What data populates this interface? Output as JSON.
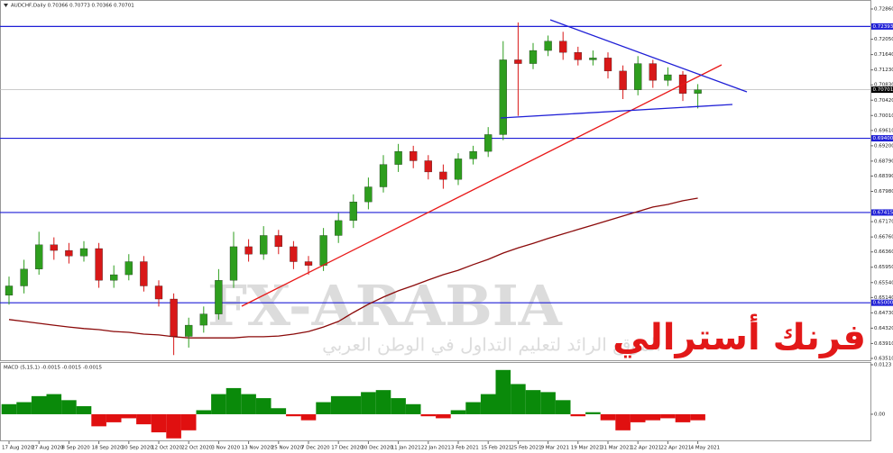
{
  "chart_data": [
    {
      "type": "candlestick",
      "title": "AUDCHF,Daily  0.70366 0.70773 0.70366 0.70701",
      "categories": [
        "17 Aug 2020",
        null,
        "27 Aug 2020",
        null,
        "8 Sep 2020",
        null,
        "18 Sep 2020",
        null,
        "30 Sep 2020",
        null,
        "12 Oct 2020",
        null,
        "22 Oct 2020",
        null,
        "3 Nov 2020",
        null,
        "13 Nov 2020",
        null,
        "25 Nov 2020",
        null,
        "7 Dec 2020",
        null,
        "17 Dec 2020",
        null,
        "30 Dec 2020",
        null,
        "11 Jan 2021",
        null,
        "22 Jan 2021",
        null,
        "3 Feb 2021",
        null,
        "15 Feb 2021",
        null,
        "25 Feb 2021",
        null,
        "9 Mar 2021",
        null,
        "19 Mar 2021",
        null,
        "31 Mar 2021",
        null,
        "12 Apr 2021",
        null,
        "22 Apr 2021",
        null,
        "4 May 2021"
      ],
      "open": [
        0.652,
        0.6545,
        0.659,
        0.6655,
        0.664,
        0.6625,
        0.6645,
        0.656,
        0.6575,
        0.661,
        0.6545,
        0.651,
        0.641,
        0.644,
        0.647,
        0.656,
        0.665,
        0.663,
        0.668,
        0.665,
        0.661,
        0.66,
        0.668,
        0.672,
        0.677,
        0.681,
        0.687,
        0.6905,
        0.688,
        0.685,
        0.683,
        0.6885,
        0.6905,
        0.695,
        0.715,
        0.714,
        0.7175,
        0.72,
        0.717,
        0.715,
        0.7155,
        0.712,
        0.707,
        0.714,
        0.7095,
        0.711,
        0.706
      ],
      "high": [
        0.657,
        0.6615,
        0.669,
        0.6675,
        0.666,
        0.6665,
        0.666,
        0.66,
        0.663,
        0.6625,
        0.656,
        0.6525,
        0.646,
        0.649,
        0.659,
        0.669,
        0.667,
        0.6705,
        0.6695,
        0.6665,
        0.6625,
        0.67,
        0.674,
        0.679,
        0.6835,
        0.6895,
        0.6925,
        0.692,
        0.6895,
        0.687,
        0.69,
        0.692,
        0.697,
        0.72,
        0.725,
        0.7195,
        0.7215,
        0.7225,
        0.7185,
        0.7175,
        0.717,
        0.7135,
        0.716,
        0.715,
        0.713,
        0.712,
        0.7085
      ],
      "low": [
        0.6495,
        0.6525,
        0.6575,
        0.6615,
        0.6605,
        0.661,
        0.654,
        0.654,
        0.656,
        0.653,
        0.649,
        0.636,
        0.638,
        0.642,
        0.6455,
        0.654,
        0.661,
        0.6615,
        0.663,
        0.659,
        0.6575,
        0.6585,
        0.666,
        0.67,
        0.675,
        0.6795,
        0.685,
        0.686,
        0.683,
        0.6805,
        0.6815,
        0.687,
        0.689,
        0.6935,
        0.7,
        0.7125,
        0.716,
        0.715,
        0.7135,
        0.7135,
        0.71,
        0.7045,
        0.7055,
        0.7075,
        0.708,
        0.704,
        0.702
      ],
      "close": [
        0.6545,
        0.659,
        0.6655,
        0.664,
        0.6625,
        0.6645,
        0.656,
        0.6575,
        0.661,
        0.6545,
        0.651,
        0.641,
        0.644,
        0.647,
        0.656,
        0.665,
        0.663,
        0.668,
        0.665,
        0.661,
        0.66,
        0.668,
        0.672,
        0.677,
        0.681,
        0.687,
        0.6905,
        0.688,
        0.685,
        0.683,
        0.6885,
        0.6905,
        0.695,
        0.715,
        0.714,
        0.7175,
        0.72,
        0.717,
        0.715,
        0.7155,
        0.712,
        0.707,
        0.714,
        0.7095,
        0.711,
        0.706,
        0.707
      ],
      "ma_values": [
        0.6455,
        0.645,
        0.6445,
        0.644,
        0.6435,
        0.6431,
        0.6428,
        0.6423,
        0.6421,
        0.6416,
        0.6414,
        0.6409,
        0.6406,
        0.6406,
        0.6406,
        0.6406,
        0.6409,
        0.6409,
        0.6411,
        0.6416,
        0.6423,
        0.6435,
        0.645,
        0.6474,
        0.6496,
        0.6515,
        0.6532,
        0.6546,
        0.6561,
        0.6575,
        0.6587,
        0.6602,
        0.6616,
        0.6633,
        0.6647,
        0.6659,
        0.6672,
        0.6684,
        0.6696,
        0.6708,
        0.672,
        0.6732,
        0.6744,
        0.6756,
        0.6763,
        0.6773,
        0.678
      ],
      "ma_color": "#8b0a0a",
      "up_color": "#2e9e1e",
      "down_color": "#d81818",
      "ylim": [
        0.6351,
        0.7286
      ],
      "yticks": [
        {
          "value": 0.7286,
          "label": "0.72860"
        },
        {
          "value": 0.7205,
          "label": "0.72050"
        },
        {
          "value": 0.7164,
          "label": "0.71640"
        },
        {
          "value": 0.7123,
          "label": "0.71230"
        },
        {
          "value": 0.7083,
          "label": "0.70830"
        },
        {
          "value": 0.7042,
          "label": "0.70420"
        },
        {
          "value": 0.7001,
          "label": "0.70010"
        },
        {
          "value": 0.6961,
          "label": "0.69610"
        },
        {
          "value": 0.692,
          "label": "0.69200"
        },
        {
          "value": 0.6879,
          "label": "0.68790"
        },
        {
          "value": 0.6839,
          "label": "0.68390"
        },
        {
          "value": 0.6798,
          "label": "0.67980"
        },
        {
          "value": 0.6717,
          "label": "0.67170"
        },
        {
          "value": 0.6676,
          "label": "0.66760"
        },
        {
          "value": 0.6636,
          "label": "0.66360"
        },
        {
          "value": 0.6595,
          "label": "0.65950"
        },
        {
          "value": 0.6554,
          "label": "0.65540"
        },
        {
          "value": 0.6514,
          "label": "0.65140"
        },
        {
          "value": 0.6473,
          "label": "0.64730"
        },
        {
          "value": 0.6432,
          "label": "0.64320"
        },
        {
          "value": 0.6391,
          "label": "0.63910"
        },
        {
          "value": 0.6351,
          "label": "0.63510"
        }
      ],
      "levels": [
        {
          "value": 0.72393,
          "label": "0.72393"
        },
        {
          "value": 0.694,
          "label": "0.69400"
        },
        {
          "value": 0.67415,
          "label": "0.67415"
        },
        {
          "value": 0.65,
          "label": "0.65000"
        }
      ],
      "level_color": "#1f1fd6",
      "current_price": {
        "value": 0.70701,
        "label": "0.70701"
      },
      "watermark": "FX-ARABIA",
      "watermark_subtitle": "الموقع الرائد لتعليم التداول في الوطن العربي",
      "annotation": "فرنك أسترالي"
    },
    {
      "type": "bar",
      "title": "MACD (5,15,1) -0.0015 -0.0015 -0.0015",
      "values": [
        0.0025,
        0.003,
        0.0045,
        0.005,
        0.0035,
        0.002,
        -0.003,
        -0.002,
        -0.001,
        -0.0025,
        -0.0045,
        -0.006,
        -0.004,
        0.001,
        0.005,
        0.0065,
        0.005,
        0.004,
        0.0015,
        -0.0005,
        -0.0015,
        0.003,
        0.0045,
        0.0045,
        0.0055,
        0.006,
        0.004,
        0.0025,
        -0.0005,
        -0.001,
        0.001,
        0.003,
        0.005,
        0.011,
        0.0075,
        0.006,
        0.0055,
        0.0035,
        -0.0005,
        0.0005,
        -0.0015,
        -0.004,
        -0.002,
        -0.0015,
        -0.001,
        -0.002,
        -0.0015
      ],
      "positive_color": "#0a8a0a",
      "negative_color": "#e01010",
      "ylim": [
        -0.0065,
        0.0123
      ],
      "yticks": [
        0.0123,
        {
          "value": 0,
          "label": "0.00"
        }
      ]
    }
  ]
}
